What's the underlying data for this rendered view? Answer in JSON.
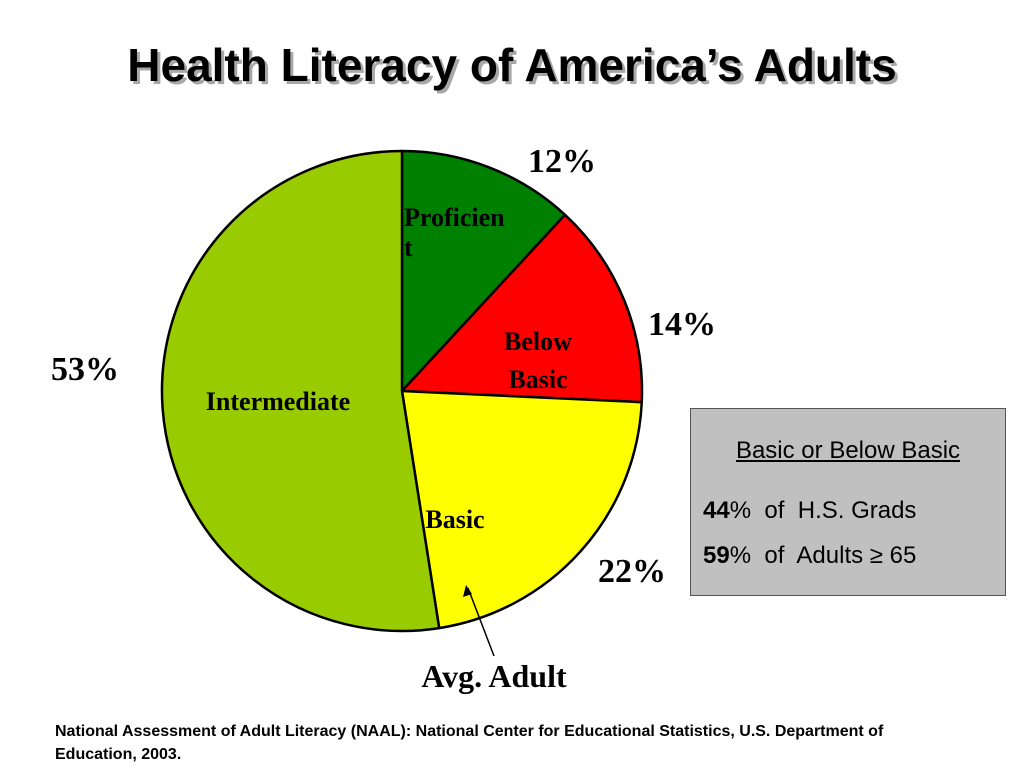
{
  "title": "Health Literacy of America’s Adults",
  "chart_data": {
    "type": "pie",
    "slices": [
      {
        "label": "Proficient",
        "label_lines": [
          "Proficien",
          "t"
        ],
        "value": 12,
        "value_label": "12%",
        "color": "#008000"
      },
      {
        "label": "Below Basic",
        "label_lines": [
          "Below",
          "Basic"
        ],
        "value": 14,
        "value_label": "14%",
        "color": "#ff0000"
      },
      {
        "label": "Basic",
        "label_lines": [
          "Basic"
        ],
        "value": 22,
        "value_label": "22%",
        "color": "#ffff00"
      },
      {
        "label": "Intermediate",
        "label_lines": [
          "Intermediate"
        ],
        "value": 53,
        "value_label": "53%",
        "color": "#99cc00"
      }
    ],
    "annotation": "Avg. Adult"
  },
  "info_box": {
    "heading": "Basic or Below Basic",
    "lines": [
      {
        "value": "44",
        "text": "%  of  H.S. Grads"
      },
      {
        "value": "59",
        "text": "%  of  Adults ≥ 65"
      }
    ]
  },
  "source": "National Assessment of Adult Literacy (NAAL): National Center for Educational Statistics, U.S. Department of Education, 2003."
}
